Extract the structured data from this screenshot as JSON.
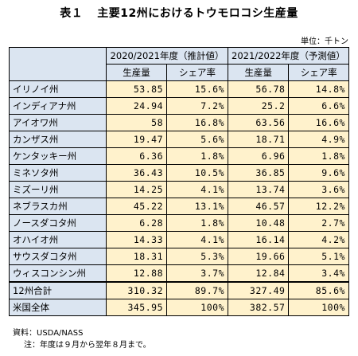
{
  "title": {
    "label": "表１",
    "text": "主要12州におけるトウモロコシ生産量"
  },
  "unit": "単位：千トン",
  "headers": {
    "period1": "2020/2021年度（推計値）",
    "period2": "2021/2022年度（予測値）",
    "production": "生産量",
    "share": "シェア率"
  },
  "rows": [
    {
      "state": "イリノイ州",
      "p1": "53.85",
      "s1": "15.6%",
      "p2": "56.78",
      "s2": "14.8%"
    },
    {
      "state": "インディアナ州",
      "p1": "24.94",
      "s1": "7.2%",
      "p2": "25.2",
      "s2": "6.6%"
    },
    {
      "state": "アイオワ州",
      "p1": "58",
      "s1": "16.8%",
      "p2": "63.56",
      "s2": "16.6%"
    },
    {
      "state": "カンザス州",
      "p1": "19.47",
      "s1": "5.6%",
      "p2": "18.71",
      "s2": "4.9%"
    },
    {
      "state": "ケンタッキー州",
      "p1": "6.36",
      "s1": "1.8%",
      "p2": "6.96",
      "s2": "1.8%"
    },
    {
      "state": "ミネソタ州",
      "p1": "36.43",
      "s1": "10.5%",
      "p2": "36.85",
      "s2": "9.6%"
    },
    {
      "state": "ミズーリ州",
      "p1": "14.25",
      "s1": "4.1%",
      "p2": "13.74",
      "s2": "3.6%"
    },
    {
      "state": "ネブラスカ州",
      "p1": "45.22",
      "s1": "13.1%",
      "p2": "46.57",
      "s2": "12.2%"
    },
    {
      "state": "ノースダコタ州",
      "p1": "6.28",
      "s1": "1.8%",
      "p2": "10.48",
      "s2": "2.7%"
    },
    {
      "state": "オハイオ州",
      "p1": "14.33",
      "s1": "4.1%",
      "p2": "16.14",
      "s2": "4.2%"
    },
    {
      "state": "サウスダコタ州",
      "p1": "18.31",
      "s1": "5.3%",
      "p2": "19.66",
      "s2": "5.1%"
    },
    {
      "state": "ウィスコンシン州",
      "p1": "12.88",
      "s1": "3.7%",
      "p2": "12.84",
      "s2": "3.4%"
    }
  ],
  "totals": [
    {
      "state": "12州合計",
      "p1": "310.32",
      "s1": "89.7%",
      "p2": "327.49",
      "s2": "85.6%"
    },
    {
      "state": "米国全体",
      "p1": "345.95",
      "s1": "100%",
      "p2": "382.57",
      "s2": "100%"
    }
  ],
  "footer": {
    "source": "資料：USDA/NASS",
    "note": "注：年度は９月から翌年８月まで。"
  }
}
